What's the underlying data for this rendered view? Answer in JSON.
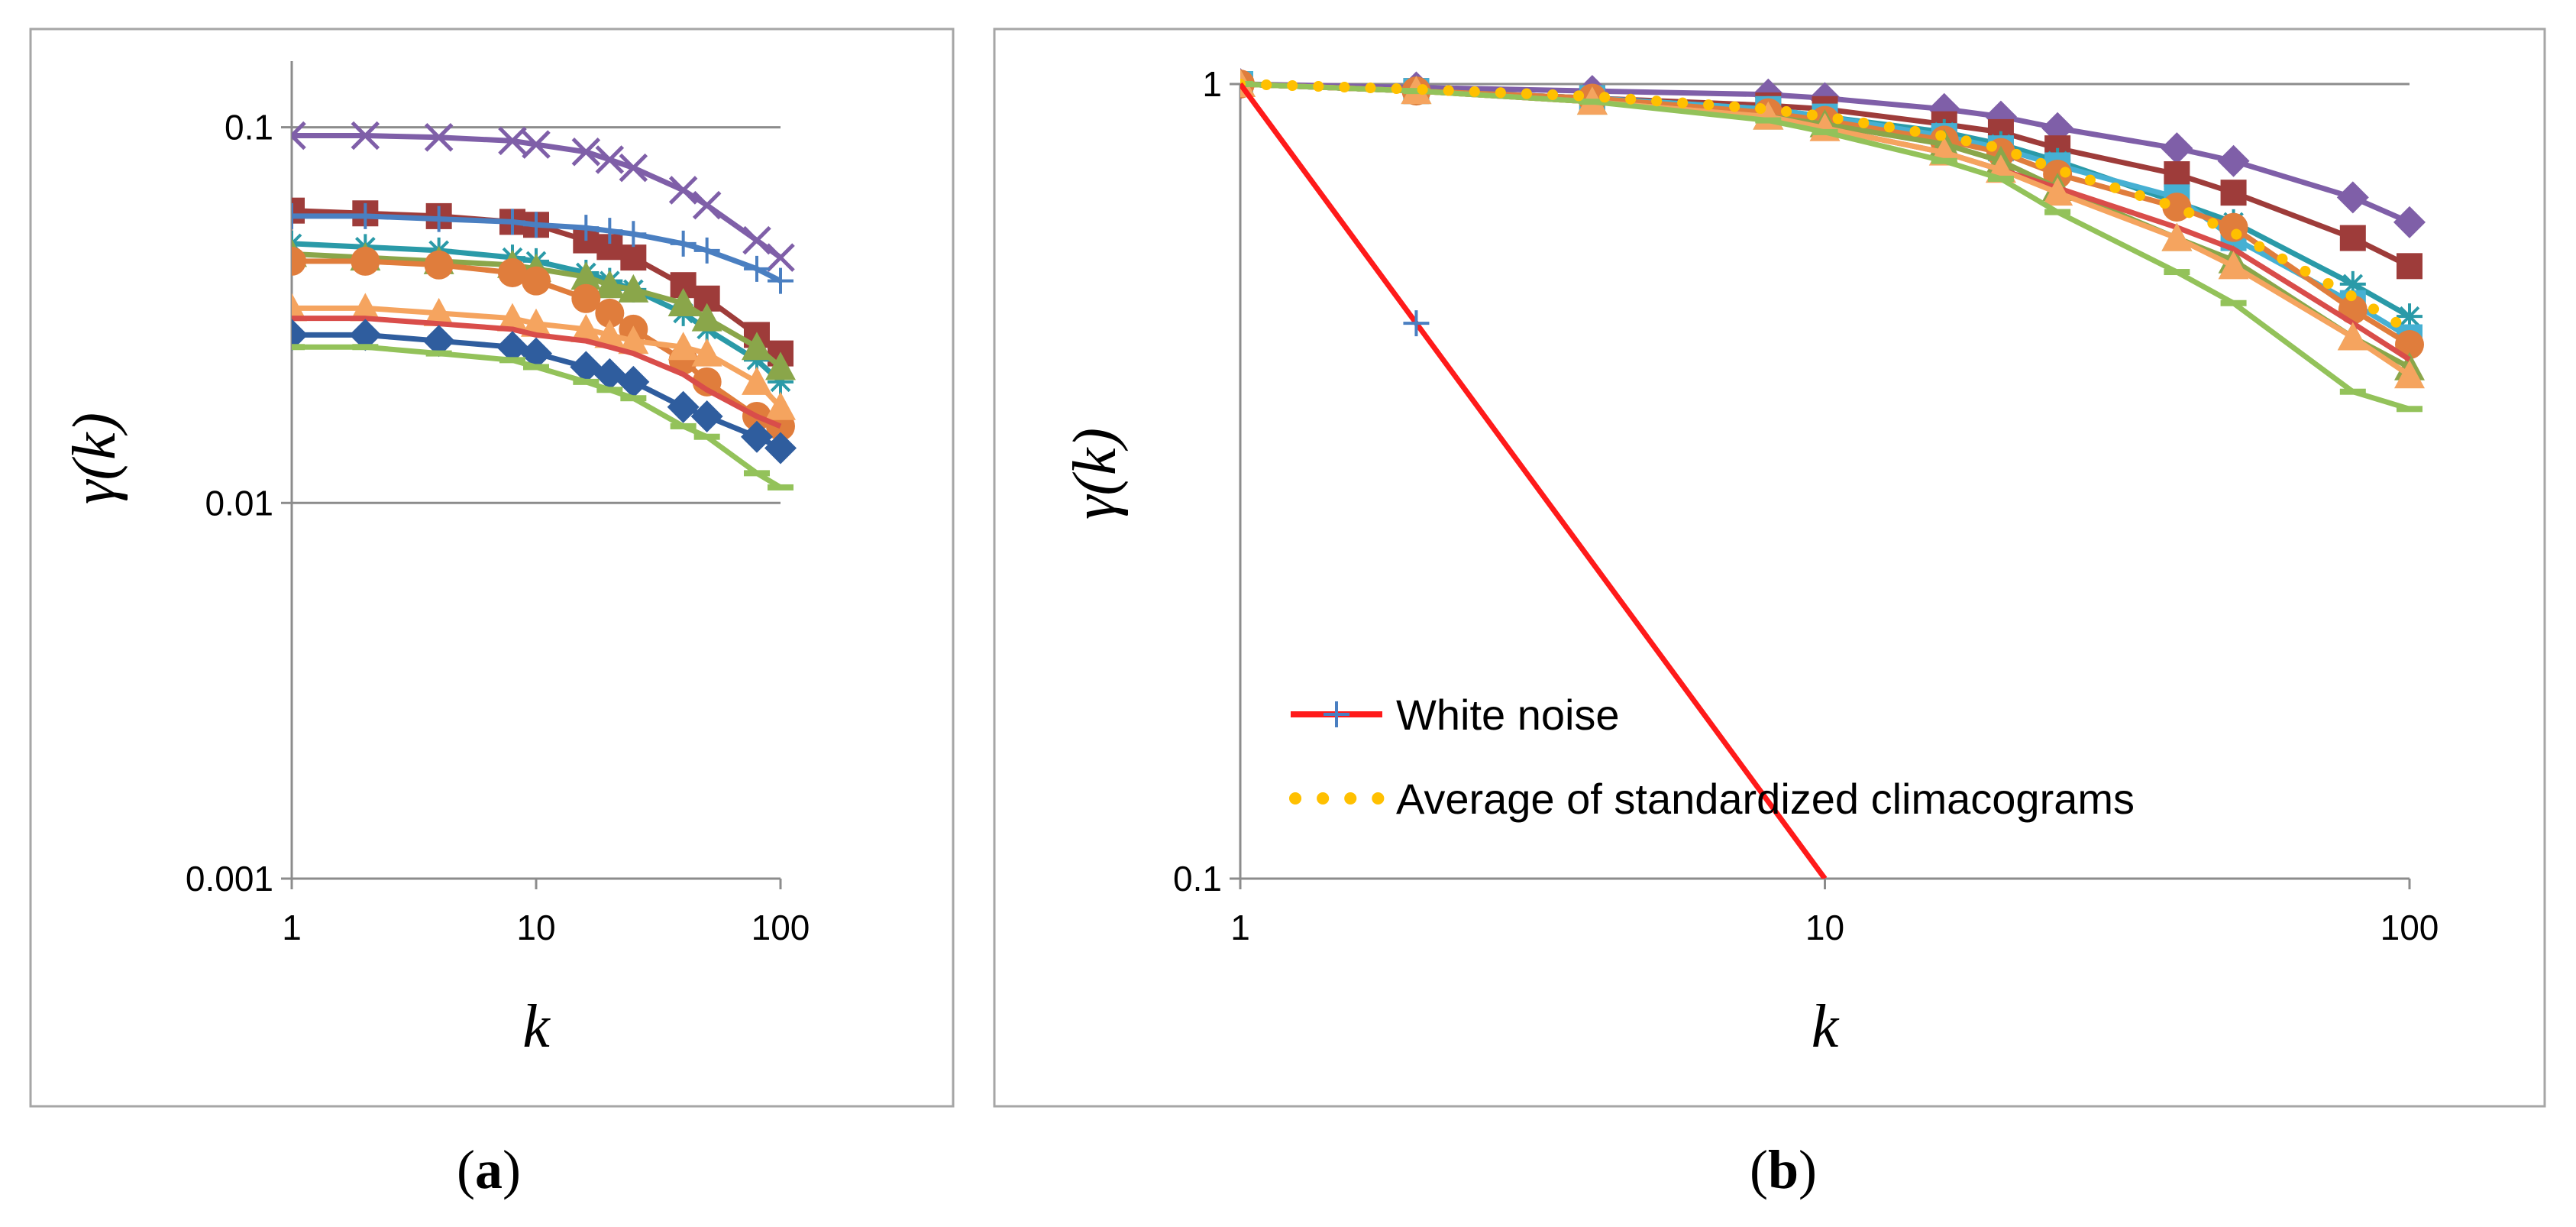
{
  "colors": {
    "purple": "#7f5fa8",
    "darkred": "#9e3c3a",
    "blue": "#4a7fc1",
    "teal": "#2a9aa8",
    "olive": "#8aa64a",
    "orange": "#e07d3c",
    "lightorange": "#f5a45f",
    "red_line": "#d94d4a",
    "navy": "#2f5d9e",
    "green": "#93c25a",
    "cyan": "#46b0d3",
    "white_noise": "#ff1a1a",
    "average": "#ffc000"
  },
  "captions": {
    "a": "a",
    "b": "b"
  },
  "chart_data": [
    {
      "type": "line",
      "panel": "a",
      "xscale": "log",
      "yscale": "log",
      "xlim": [
        1,
        100
      ],
      "ylim": [
        0.001,
        0.15
      ],
      "x_ticks": [
        "1",
        "10",
        "100"
      ],
      "y_ticks": [
        "0.001",
        "0.01",
        "0.1"
      ],
      "xlabel_symbol": "k",
      "ylabel_fn": "γ",
      "ylabel_arg": "k",
      "grid": "horizontal",
      "x": [
        1,
        2,
        4,
        8,
        10,
        16,
        20,
        25,
        40,
        50,
        80,
        100
      ],
      "series": [
        {
          "color": "purple",
          "marker": "x",
          "values": [
            0.095,
            0.095,
            0.094,
            0.092,
            0.09,
            0.086,
            0.082,
            0.078,
            0.068,
            0.062,
            0.05,
            0.045
          ]
        },
        {
          "color": "darkred",
          "marker": "square",
          "values": [
            0.06,
            0.059,
            0.058,
            0.056,
            0.055,
            0.05,
            0.048,
            0.045,
            0.038,
            0.035,
            0.028,
            0.025
          ]
        },
        {
          "color": "blue",
          "marker": "plus",
          "values": [
            0.058,
            0.058,
            0.057,
            0.056,
            0.055,
            0.054,
            0.053,
            0.052,
            0.049,
            0.047,
            0.042,
            0.039
          ]
        },
        {
          "color": "teal",
          "marker": "star",
          "values": [
            0.049,
            0.048,
            0.047,
            0.045,
            0.044,
            0.041,
            0.039,
            0.037,
            0.032,
            0.029,
            0.024,
            0.021
          ]
        },
        {
          "color": "olive",
          "marker": "triangle",
          "values": [
            0.046,
            0.045,
            0.044,
            0.043,
            0.042,
            0.04,
            0.038,
            0.037,
            0.034,
            0.031,
            0.026,
            0.023
          ]
        },
        {
          "color": "orange",
          "marker": "circle",
          "values": [
            0.044,
            0.044,
            0.043,
            0.041,
            0.039,
            0.035,
            0.032,
            0.029,
            0.024,
            0.021,
            0.017,
            0.016
          ]
        },
        {
          "color": "lightorange",
          "marker": "triangle",
          "values": [
            0.033,
            0.033,
            0.032,
            0.031,
            0.03,
            0.029,
            0.028,
            0.027,
            0.026,
            0.025,
            0.021,
            0.018
          ]
        },
        {
          "color": "red_line",
          "marker": "none",
          "values": [
            0.031,
            0.031,
            0.03,
            0.029,
            0.028,
            0.027,
            0.026,
            0.025,
            0.022,
            0.02,
            0.017,
            0.016
          ]
        },
        {
          "color": "navy",
          "marker": "diamond",
          "values": [
            0.028,
            0.028,
            0.027,
            0.026,
            0.025,
            0.023,
            0.022,
            0.021,
            0.018,
            0.017,
            0.015,
            0.014
          ]
        },
        {
          "color": "green",
          "marker": "dash",
          "values": [
            0.026,
            0.026,
            0.025,
            0.024,
            0.023,
            0.021,
            0.02,
            0.019,
            0.016,
            0.015,
            0.012,
            0.011
          ]
        }
      ]
    },
    {
      "type": "line",
      "panel": "b",
      "xscale": "log",
      "yscale": "log",
      "xlim": [
        1,
        100
      ],
      "ylim": [
        0.1,
        1
      ],
      "x_ticks": [
        "1",
        "10",
        "100"
      ],
      "y_ticks": [
        "0.1",
        "1"
      ],
      "xlabel_symbol": "k",
      "ylabel_fn": "γ",
      "ylabel_arg": "k",
      "grid": "horizontal",
      "legend": [
        {
          "label": "White noise",
          "style": "white_noise"
        },
        {
          "label": "Average of standardized climacograms",
          "style": "average"
        }
      ],
      "x": [
        1,
        2,
        4,
        8,
        10,
        16,
        20,
        25,
        40,
        50,
        80,
        100
      ],
      "series": [
        {
          "color": "purple",
          "marker": "diamond",
          "values": [
            1.0,
            0.99,
            0.98,
            0.97,
            0.96,
            0.93,
            0.91,
            0.88,
            0.83,
            0.8,
            0.72,
            0.67
          ]
        },
        {
          "color": "darkred",
          "marker": "square",
          "values": [
            1.0,
            0.98,
            0.96,
            0.94,
            0.93,
            0.89,
            0.87,
            0.83,
            0.77,
            0.73,
            0.64,
            0.59
          ]
        },
        {
          "color": "teal",
          "marker": "star",
          "values": [
            1.0,
            0.98,
            0.96,
            0.93,
            0.91,
            0.87,
            0.84,
            0.8,
            0.71,
            0.67,
            0.56,
            0.51
          ]
        },
        {
          "color": "cyan",
          "marker": "square",
          "values": [
            1.0,
            0.98,
            0.96,
            0.93,
            0.91,
            0.86,
            0.83,
            0.79,
            0.72,
            0.64,
            0.53,
            0.48
          ]
        },
        {
          "color": "orange",
          "marker": "circle",
          "values": [
            1.0,
            0.98,
            0.96,
            0.92,
            0.9,
            0.85,
            0.82,
            0.77,
            0.7,
            0.66,
            0.52,
            0.47
          ]
        },
        {
          "color": "olive",
          "marker": "triangle",
          "values": [
            1.0,
            0.98,
            0.95,
            0.91,
            0.89,
            0.84,
            0.8,
            0.74,
            0.64,
            0.6,
            0.48,
            0.44
          ]
        },
        {
          "color": "red_line",
          "marker": "none",
          "values": [
            1.0,
            0.98,
            0.95,
            0.91,
            0.88,
            0.82,
            0.78,
            0.74,
            0.66,
            0.62,
            0.5,
            0.45
          ]
        },
        {
          "color": "lightorange",
          "marker": "triangle",
          "values": [
            1.0,
            0.98,
            0.95,
            0.91,
            0.88,
            0.82,
            0.78,
            0.73,
            0.64,
            0.59,
            0.48,
            0.43
          ]
        },
        {
          "color": "green",
          "marker": "dash",
          "values": [
            1.0,
            0.98,
            0.95,
            0.9,
            0.87,
            0.8,
            0.76,
            0.69,
            0.58,
            0.53,
            0.41,
            0.39
          ]
        },
        {
          "color": "average",
          "marker": "dotted",
          "values": [
            1.0,
            0.985,
            0.965,
            0.93,
            0.91,
            0.86,
            0.83,
            0.78,
            0.7,
            0.65,
            0.54,
            0.49
          ]
        },
        {
          "color": "white_noise",
          "marker": "plus",
          "x": [
            1,
            2,
            4
          ],
          "values": [
            1.0,
            0.5,
            0.25
          ]
        }
      ]
    }
  ]
}
